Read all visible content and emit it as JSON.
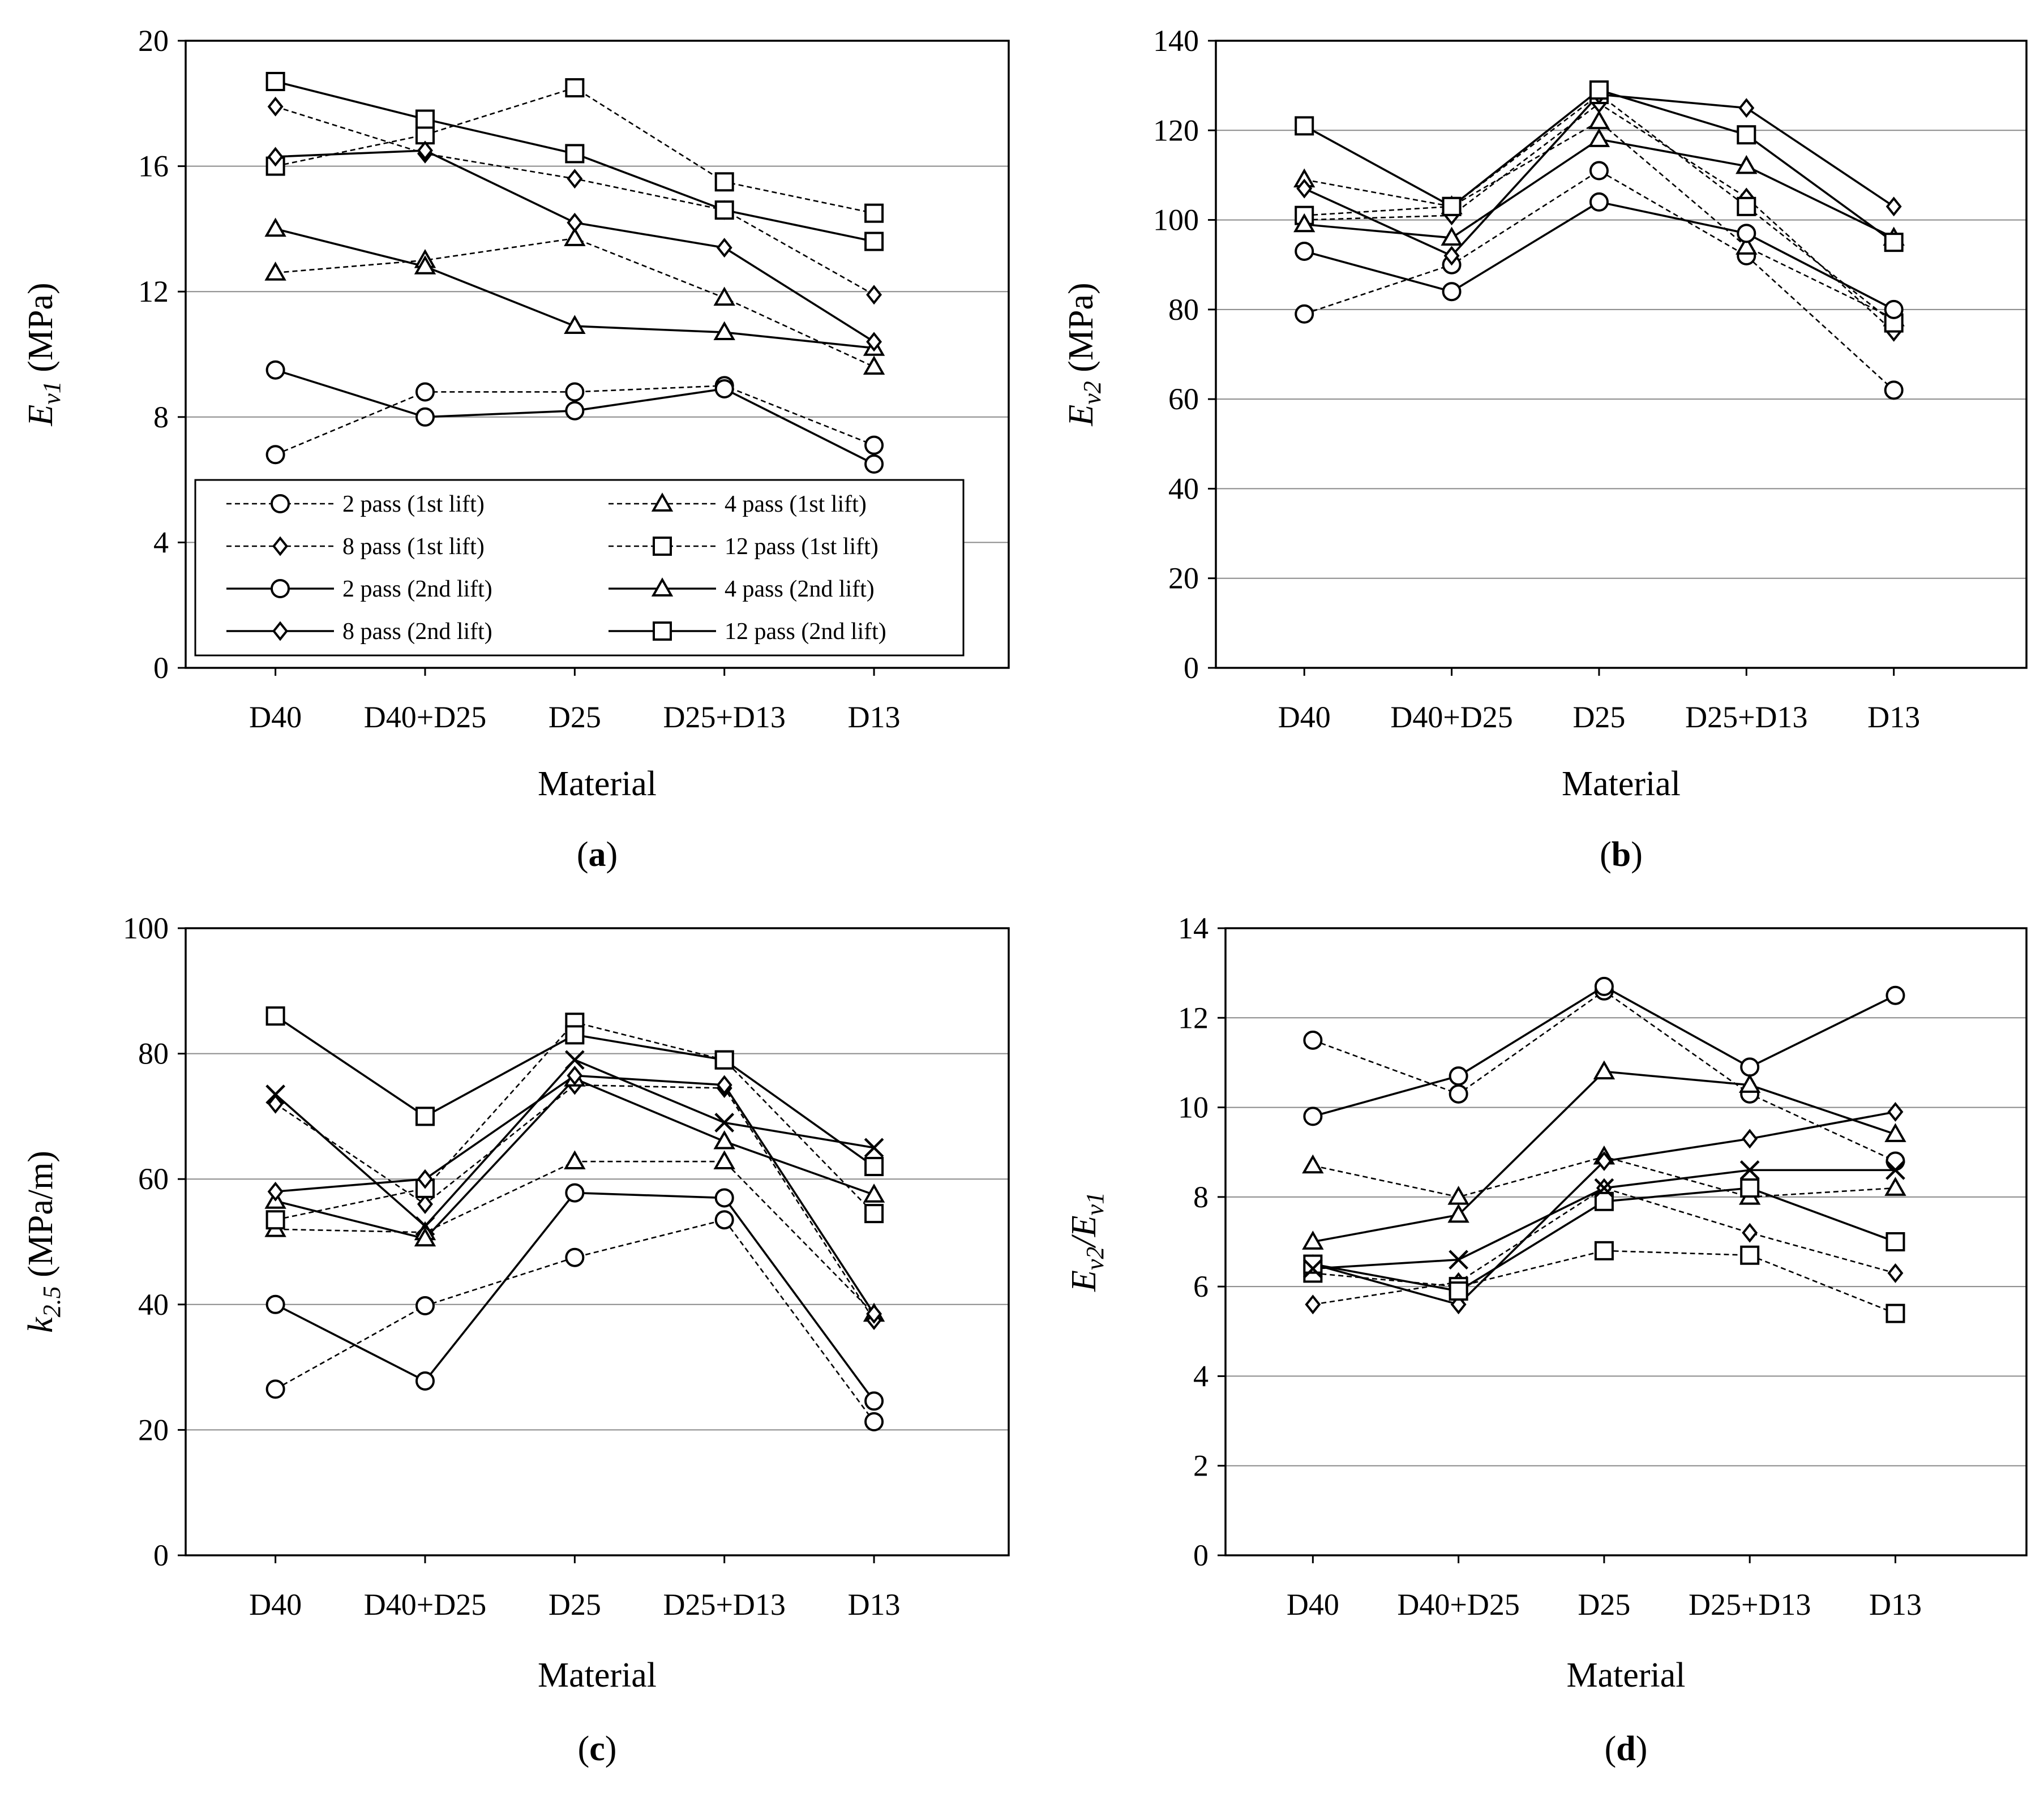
{
  "chart_data": [
    {
      "panel": "a",
      "panel_label": "a",
      "type": "line",
      "xlabel": "Material",
      "ylabel_main": "E",
      "ylabel_sub": "v1",
      "ylabel_unit": " (MPa)",
      "categories": [
        "D40",
        "D40+D25",
        "D25",
        "D25+D13",
        "D13"
      ],
      "ylim": [
        0,
        20
      ],
      "yticks": [
        0,
        4,
        8,
        12,
        16,
        20
      ],
      "grid": true,
      "legend_position": "lower-center",
      "series": [
        {
          "name": "2 pass (1st lift)",
          "marker": "circle",
          "dash": true,
          "values": [
            6.8,
            8.8,
            8.8,
            9.0,
            7.1
          ]
        },
        {
          "name": "4 pass (1st lift)",
          "marker": "triangle",
          "dash": true,
          "values": [
            12.6,
            13.0,
            13.7,
            11.8,
            9.6
          ]
        },
        {
          "name": "8 pass (1st lift)",
          "marker": "diamond",
          "dash": true,
          "values": [
            17.9,
            16.4,
            15.6,
            14.6,
            11.9
          ]
        },
        {
          "name": "12 pass (1st lift)",
          "marker": "square",
          "dash": true,
          "values": [
            16.0,
            17.0,
            18.5,
            15.5,
            14.5
          ]
        },
        {
          "name": "2 pass (2nd lift)",
          "marker": "circle",
          "dash": false,
          "values": [
            9.5,
            8.0,
            8.2,
            8.9,
            6.5
          ]
        },
        {
          "name": "4 pass (2nd lift)",
          "marker": "triangle",
          "dash": false,
          "values": [
            14.0,
            12.8,
            10.9,
            10.7,
            10.2
          ]
        },
        {
          "name": "8 pass (2nd lift)",
          "marker": "diamond",
          "dash": false,
          "values": [
            16.3,
            16.5,
            14.2,
            13.4,
            10.4
          ]
        },
        {
          "name": "12 pass (2nd lift)",
          "marker": "square",
          "dash": false,
          "values": [
            18.7,
            17.5,
            16.4,
            14.6,
            13.6
          ]
        }
      ]
    },
    {
      "panel": "b",
      "panel_label": "b",
      "type": "line",
      "xlabel": "Material",
      "ylabel_main": "E",
      "ylabel_sub": "v2",
      "ylabel_unit": " (MPa)",
      "categories": [
        "D40",
        "D40+D25",
        "D25",
        "D25+D13",
        "D13"
      ],
      "ylim": [
        0,
        140
      ],
      "yticks": [
        0,
        20,
        40,
        60,
        80,
        100,
        120,
        140
      ],
      "grid": true,
      "series": [
        {
          "name": "2 pass (1st lift)",
          "marker": "circle",
          "dash": true,
          "values": [
            79,
            90,
            111,
            92,
            62
          ]
        },
        {
          "name": "4 pass (1st lift)",
          "marker": "triangle",
          "dash": true,
          "values": [
            109,
            103,
            122,
            94,
            78
          ]
        },
        {
          "name": "8 pass (1st lift)",
          "marker": "diamond",
          "dash": true,
          "values": [
            100,
            101,
            126,
            105,
            75
          ]
        },
        {
          "name": "12 pass (1st lift)",
          "marker": "square",
          "dash": true,
          "values": [
            101,
            103,
            128,
            103,
            77
          ]
        },
        {
          "name": "2 pass (2nd lift)",
          "marker": "circle",
          "dash": false,
          "values": [
            93,
            84,
            104,
            97,
            80
          ]
        },
        {
          "name": "4 pass (2nd lift)",
          "marker": "triangle",
          "dash": false,
          "values": [
            99,
            96,
            118,
            112,
            96
          ]
        },
        {
          "name": "8 pass (2nd lift)",
          "marker": "diamond",
          "dash": false,
          "values": [
            107,
            92,
            128,
            125,
            103
          ]
        },
        {
          "name": "12 pass (2nd lift)",
          "marker": "square",
          "dash": false,
          "values": [
            121,
            103,
            129,
            119,
            95
          ]
        }
      ]
    },
    {
      "panel": "c",
      "panel_label": "c",
      "type": "line",
      "xlabel": "Material",
      "ylabel_main": "k",
      "ylabel_sub": "2.5",
      "ylabel_unit": " (MPa/m)",
      "categories": [
        "D40",
        "D40+D25",
        "D25",
        "D25+D13",
        "D13"
      ],
      "ylim": [
        0,
        100
      ],
      "yticks": [
        0,
        20,
        40,
        60,
        80,
        100
      ],
      "grid": true,
      "series": [
        {
          "name": "2 pass (1st lift)",
          "marker": "circle",
          "dash": true,
          "values": [
            26.5,
            39.8,
            47.5,
            53.5,
            21.3
          ]
        },
        {
          "name": "4 pass (1st lift)",
          "marker": "triangle",
          "dash": true,
          "values": [
            52.0,
            51.5,
            62.8,
            62.8,
            38.5
          ]
        },
        {
          "name": "8 pass (1st lift)",
          "marker": "diamond",
          "dash": true,
          "values": [
            72.0,
            56.0,
            75.0,
            74.5,
            37.5
          ]
        },
        {
          "name": "12 pass (1st lift)",
          "marker": "square",
          "dash": true,
          "values": [
            53.5,
            58.5,
            85.0,
            79.0,
            54.5
          ]
        },
        {
          "name": "2 pass (2nd lift)",
          "marker": "circle",
          "dash": false,
          "values": [
            40.0,
            27.8,
            57.8,
            57.0,
            24.6
          ]
        },
        {
          "name": "4 pass (2nd lift)",
          "marker": "triangle",
          "dash": false,
          "values": [
            56.5,
            50.5,
            76.0,
            66.0,
            57.5
          ]
        },
        {
          "name": "8 pass (2nd lift)",
          "marker": "diamond",
          "dash": false,
          "values": [
            58.0,
            60.0,
            76.5,
            75.0,
            38.5
          ]
        },
        {
          "name": "12 pass (2nd lift)",
          "marker": "square",
          "dash": false,
          "values": [
            86.0,
            70.0,
            83.0,
            79.0,
            62.0
          ]
        },
        {
          "name": "",
          "marker": "x",
          "dash": false,
          "values": [
            73.5,
            52.5,
            79.0,
            69.0,
            65.0
          ]
        }
      ]
    },
    {
      "panel": "d",
      "panel_label": "d",
      "type": "line",
      "xlabel": "Material",
      "ylabel_main": "E",
      "ylabel_sub": "v2",
      "ylabel_mid": "/E",
      "ylabel_sub2": "v1",
      "ylabel_unit": "",
      "categories": [
        "D40",
        "D40+D25",
        "D25",
        "D25+D13",
        "D13"
      ],
      "ylim": [
        0,
        14
      ],
      "yticks": [
        0,
        2,
        4,
        6,
        8,
        10,
        12,
        14
      ],
      "grid": true,
      "series": [
        {
          "name": "2 pass (1st lift)",
          "marker": "circle",
          "dash": true,
          "values": [
            11.5,
            10.3,
            12.6,
            10.3,
            8.8
          ]
        },
        {
          "name": "4 pass (1st lift)",
          "marker": "triangle",
          "dash": true,
          "values": [
            8.7,
            8.0,
            8.9,
            8.0,
            8.2
          ]
        },
        {
          "name": "8 pass (1st lift)",
          "marker": "diamond",
          "dash": true,
          "values": [
            5.6,
            6.1,
            8.2,
            7.2,
            6.3
          ]
        },
        {
          "name": "12 pass (1st lift)",
          "marker": "square",
          "dash": true,
          "values": [
            6.3,
            6.0,
            6.8,
            6.7,
            5.4
          ]
        },
        {
          "name": "2 pass (2nd lift)",
          "marker": "circle",
          "dash": false,
          "values": [
            9.8,
            10.7,
            12.7,
            10.9,
            12.5
          ]
        },
        {
          "name": "4 pass (2nd lift)",
          "marker": "triangle",
          "dash": false,
          "values": [
            7.0,
            7.6,
            10.8,
            10.5,
            9.4
          ]
        },
        {
          "name": "8 pass (2nd lift)",
          "marker": "diamond",
          "dash": false,
          "values": [
            6.5,
            5.6,
            8.8,
            9.3,
            9.9
          ]
        },
        {
          "name": "12 pass (2nd lift)",
          "marker": "square",
          "dash": false,
          "values": [
            6.5,
            5.9,
            7.9,
            8.2,
            7.0
          ]
        },
        {
          "name": "",
          "marker": "x",
          "dash": false,
          "values": [
            6.4,
            6.6,
            8.2,
            8.6,
            8.6
          ]
        }
      ]
    }
  ]
}
